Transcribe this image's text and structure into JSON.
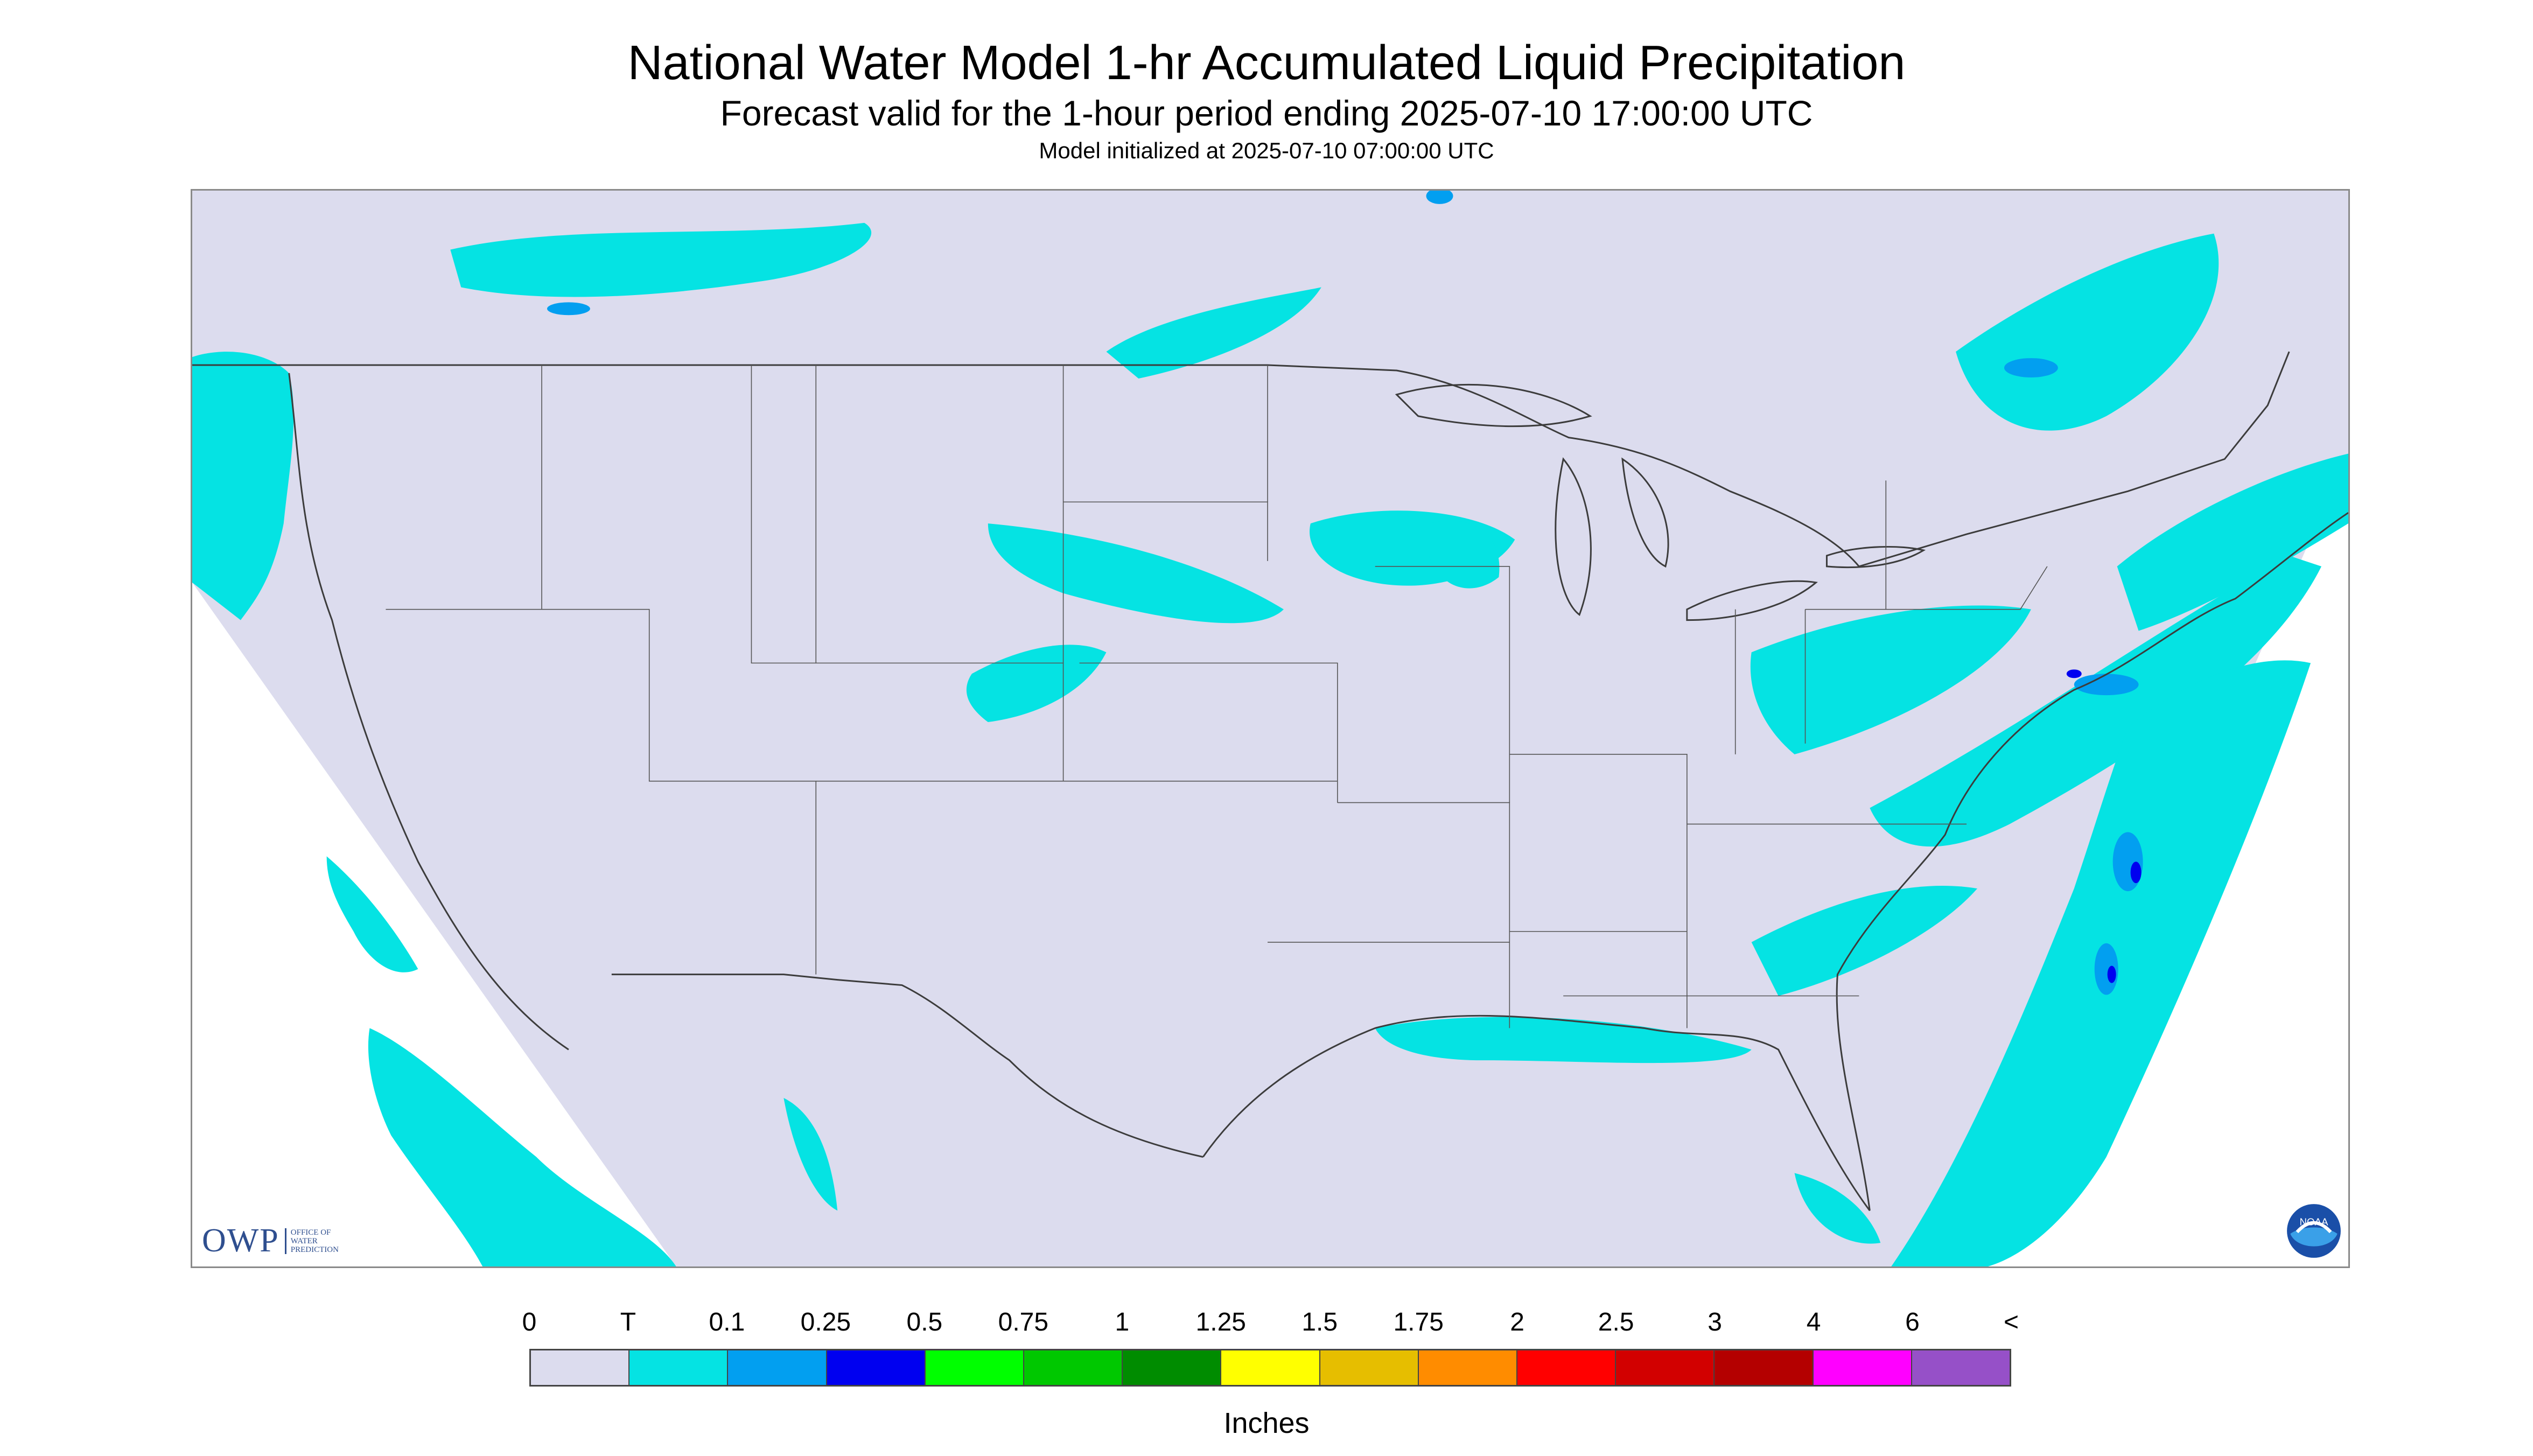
{
  "header": {
    "title": "National Water Model 1-hr Accumulated Liquid Precipitation",
    "subtitle": "Forecast valid for the 1-hour period ending 2025-07-10 17:00:00 UTC",
    "init": "Model initialized at 2025-07-10 07:00:00 UTC"
  },
  "logos": {
    "owp_mark": "OWP",
    "owp_lines": [
      "OFFICE OF",
      "WATER",
      "PREDICTION"
    ],
    "noaa": "NOAA"
  },
  "colors": {
    "background": "#dcdcee",
    "light_precip": "#05e3e3",
    "medium_precip": "#029ff0",
    "heavy_precip": "#0000f0",
    "boundary": "#3c3c3c"
  },
  "legend": {
    "tick_labels": [
      "0",
      "T",
      "0.1",
      "0.25",
      "0.5",
      "0.75",
      "1",
      "1.25",
      "1.5",
      "1.75",
      "2",
      "2.5",
      "3",
      "4",
      "6",
      "<"
    ],
    "colors": [
      "#dcdcee",
      "#05e3e3",
      "#029ff0",
      "#0000f0",
      "#00ff00",
      "#00c800",
      "#008c00",
      "#ffff00",
      "#e6be00",
      "#ff8c00",
      "#ff0000",
      "#d20000",
      "#b40000",
      "#ff00ff",
      "#9650c8"
    ],
    "units": "Inches"
  }
}
